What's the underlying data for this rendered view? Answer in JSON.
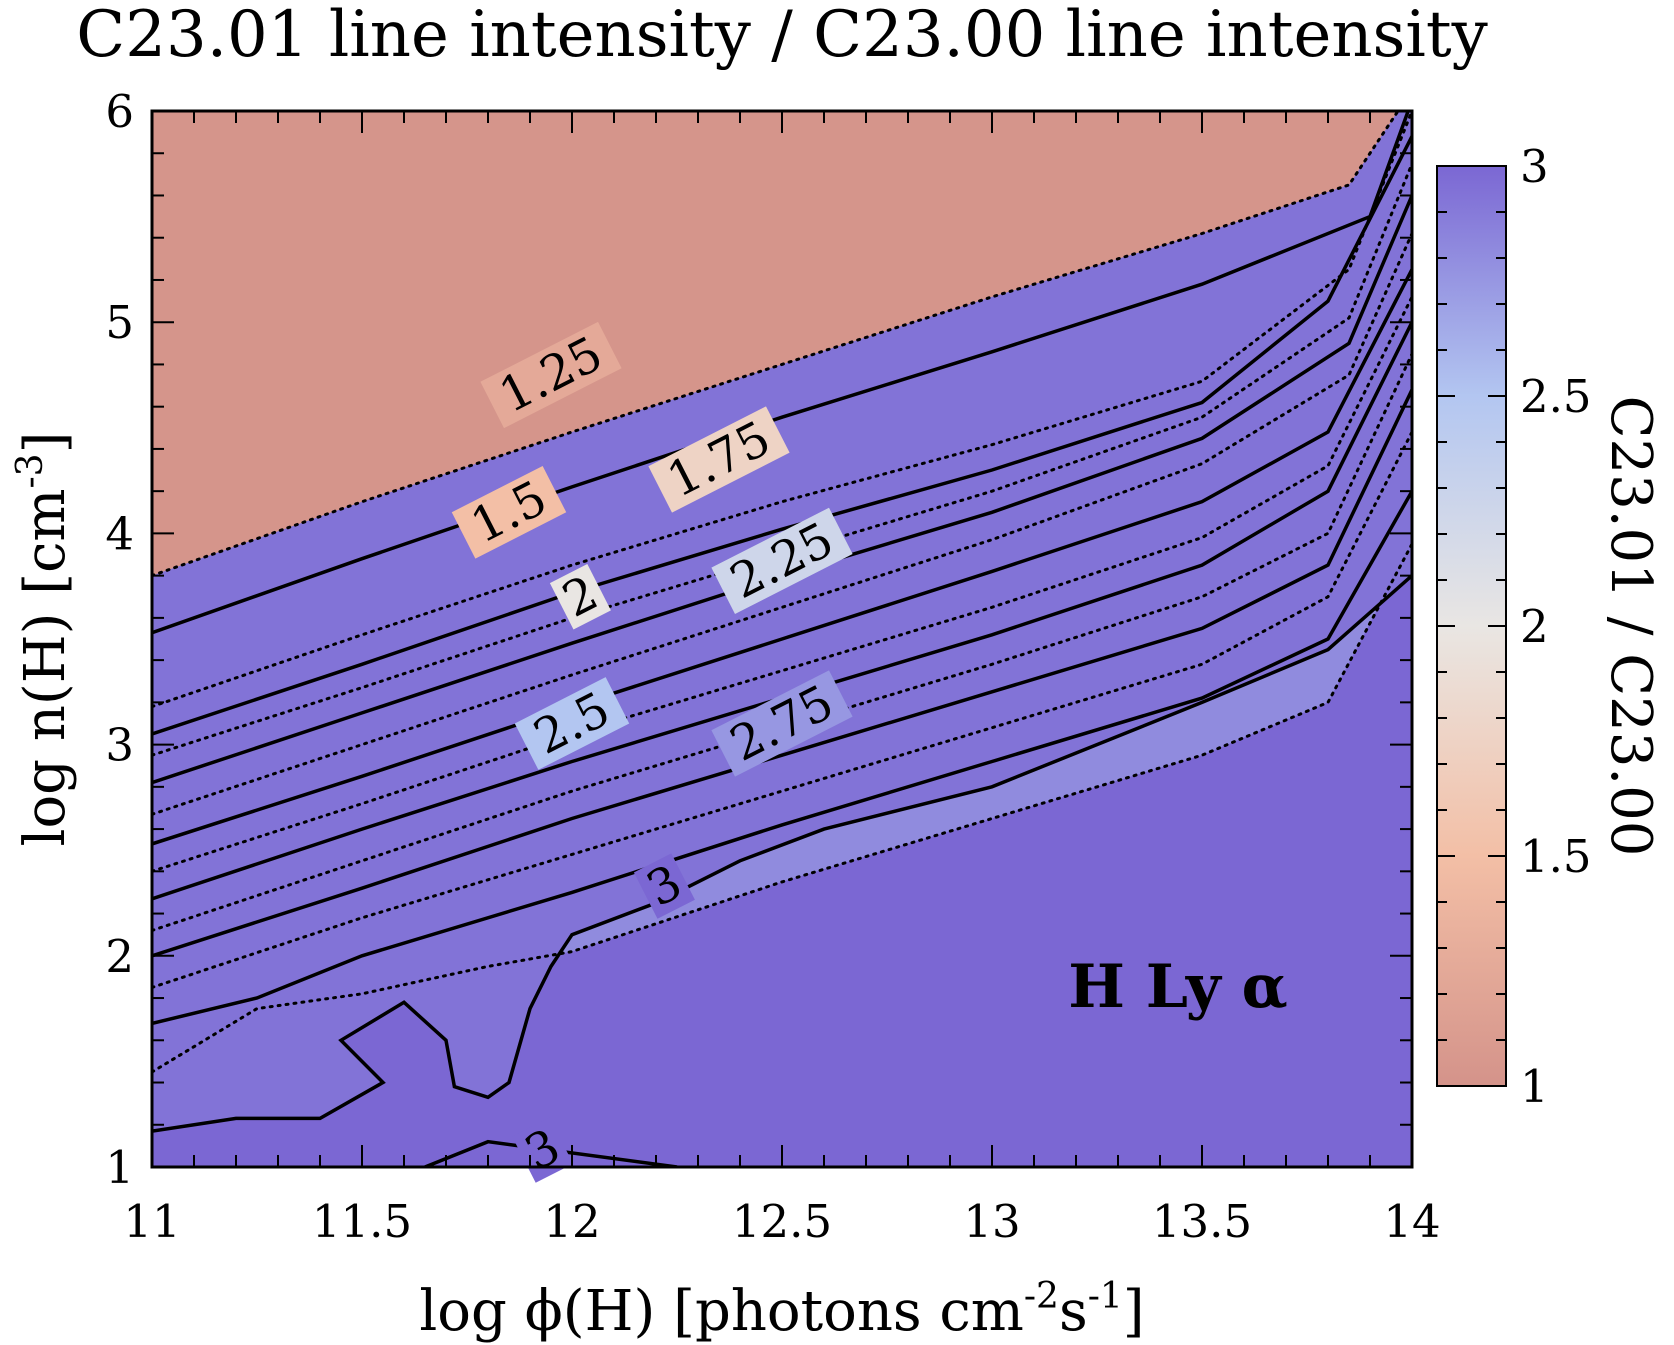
{
  "chart_data": {
    "type": "heatmap",
    "title": "C23.01 line intensity / C23.00 line intensity",
    "xlabel": "log ϕ(H) [photons cm⁻²s⁻¹]",
    "ylabel": "log n(H) [cm⁻³]",
    "xlabel_parts": {
      "main": "log ϕ(H) [photons cm",
      "sup1": "-2",
      "mid": "s",
      "sup2": "-1",
      "end": "]"
    },
    "ylabel_parts": {
      "main": "log n(H) [cm",
      "sup": "-3",
      "end": "]"
    },
    "xlim": [
      11,
      14
    ],
    "ylim": [
      1,
      6
    ],
    "xticks": [
      "11",
      "11.5",
      "12",
      "12.5",
      "13",
      "13.5",
      "14"
    ],
    "yticks": [
      "1",
      "2",
      "3",
      "4",
      "5",
      "6"
    ],
    "colorbar": {
      "label": "C23.01 / C23.00",
      "range": [
        1,
        3
      ],
      "ticks": [
        "1",
        "1.5",
        "2",
        "2.5",
        "3"
      ],
      "colors": [
        "#d4938a",
        "#f3bfa6",
        "#e9e6e3",
        "#b3c6f1",
        "#7b67d3"
      ]
    },
    "annotation": "H Ly α",
    "grid": false,
    "contours": [
      {
        "level": 1.125,
        "style": "dotted",
        "points": [
          [
            11,
            3.8
          ],
          [
            11.5,
            4.15
          ],
          [
            12,
            4.48
          ],
          [
            12.5,
            4.8
          ],
          [
            13,
            5.12
          ],
          [
            13.5,
            5.42
          ],
          [
            13.85,
            5.65
          ],
          [
            14,
            6.1
          ]
        ]
      },
      {
        "level": 1.25,
        "style": "solid",
        "label": "1.25",
        "label_pos": [
          11.95,
          4.75
        ],
        "points": [
          [
            11,
            3.53
          ],
          [
            11.5,
            3.88
          ],
          [
            12,
            4.22
          ],
          [
            12.5,
            4.55
          ],
          [
            13,
            4.86
          ],
          [
            13.5,
            5.18
          ],
          [
            13.9,
            5.5
          ],
          [
            14,
            6.05
          ]
        ]
      },
      {
        "level": 1.375,
        "style": "dotted",
        "points": [
          [
            11,
            3.18
          ],
          [
            11.5,
            3.52
          ],
          [
            12,
            3.85
          ],
          [
            12.5,
            4.15
          ],
          [
            13,
            4.42
          ],
          [
            13.5,
            4.72
          ],
          [
            13.85,
            5.25
          ],
          [
            14,
            6.0
          ]
        ]
      },
      {
        "level": 1.5,
        "style": "solid",
        "label": "1.5",
        "label_pos": [
          11.85,
          4.1
        ],
        "points": [
          [
            11,
            3.05
          ],
          [
            11.5,
            3.38
          ],
          [
            12,
            3.72
          ],
          [
            12.5,
            4.02
          ],
          [
            13,
            4.3
          ],
          [
            13.5,
            4.62
          ],
          [
            13.8,
            5.1
          ],
          [
            14,
            5.88
          ]
        ]
      },
      {
        "level": 1.625,
        "style": "dotted",
        "points": [
          [
            11,
            2.95
          ],
          [
            11.5,
            3.27
          ],
          [
            12,
            3.6
          ],
          [
            12.5,
            3.9
          ],
          [
            13,
            4.2
          ],
          [
            13.5,
            4.55
          ],
          [
            13.85,
            5.02
          ],
          [
            14,
            5.75
          ]
        ]
      },
      {
        "level": 1.75,
        "style": "solid",
        "label": "1.75",
        "label_pos": [
          12.35,
          4.35
        ],
        "points": [
          [
            11,
            2.82
          ],
          [
            11.5,
            3.15
          ],
          [
            12,
            3.48
          ],
          [
            12.5,
            3.8
          ],
          [
            13,
            4.1
          ],
          [
            13.5,
            4.45
          ],
          [
            13.85,
            4.9
          ],
          [
            14,
            5.6
          ]
        ]
      },
      {
        "level": 1.875,
        "style": "dotted",
        "points": [
          [
            11,
            2.67
          ],
          [
            11.5,
            3.0
          ],
          [
            12,
            3.33
          ],
          [
            12.5,
            3.65
          ],
          [
            13,
            3.97
          ],
          [
            13.5,
            4.33
          ],
          [
            13.85,
            4.75
          ],
          [
            14,
            5.42
          ]
        ]
      },
      {
        "level": 2.0,
        "style": "solid",
        "label": "2",
        "label_pos": [
          12.02,
          3.7
        ],
        "points": [
          [
            11,
            2.53
          ],
          [
            11.5,
            2.85
          ],
          [
            12,
            3.18
          ],
          [
            12.5,
            3.5
          ],
          [
            13,
            3.82
          ],
          [
            13.5,
            4.15
          ],
          [
            13.8,
            4.48
          ],
          [
            14,
            5.25
          ]
        ]
      },
      {
        "level": 2.125,
        "style": "dotted",
        "points": [
          [
            11,
            2.4
          ],
          [
            11.5,
            2.72
          ],
          [
            12,
            3.05
          ],
          [
            12.5,
            3.35
          ],
          [
            13,
            3.65
          ],
          [
            13.5,
            3.98
          ],
          [
            13.8,
            4.32
          ],
          [
            14,
            5.12
          ]
        ]
      },
      {
        "level": 2.25,
        "style": "solid",
        "label": "2.25",
        "label_pos": [
          12.5,
          3.87
        ],
        "points": [
          [
            11,
            2.27
          ],
          [
            11.5,
            2.6
          ],
          [
            12,
            2.92
          ],
          [
            12.5,
            3.22
          ],
          [
            13,
            3.52
          ],
          [
            13.5,
            3.85
          ],
          [
            13.8,
            4.2
          ],
          [
            14,
            5.0
          ]
        ]
      },
      {
        "level": 2.375,
        "style": "dotted",
        "points": [
          [
            11,
            2.12
          ],
          [
            11.5,
            2.45
          ],
          [
            12,
            2.78
          ],
          [
            12.5,
            3.08
          ],
          [
            13,
            3.38
          ],
          [
            13.5,
            3.7
          ],
          [
            13.8,
            4.0
          ],
          [
            14,
            4.85
          ]
        ]
      },
      {
        "level": 2.5,
        "style": "solid",
        "label": "2.5",
        "label_pos": [
          12.0,
          3.1
        ],
        "points": [
          [
            11,
            2.0
          ],
          [
            11.5,
            2.32
          ],
          [
            12,
            2.65
          ],
          [
            12.5,
            2.95
          ],
          [
            13,
            3.25
          ],
          [
            13.5,
            3.55
          ],
          [
            13.8,
            3.85
          ],
          [
            14,
            4.68
          ]
        ]
      },
      {
        "level": 2.625,
        "style": "dotted",
        "points": [
          [
            11,
            1.85
          ],
          [
            11.5,
            2.18
          ],
          [
            12,
            2.48
          ],
          [
            12.5,
            2.78
          ],
          [
            13,
            3.08
          ],
          [
            13.5,
            3.38
          ],
          [
            13.8,
            3.7
          ],
          [
            14,
            4.48
          ]
        ]
      },
      {
        "level": 2.75,
        "style": "solid",
        "label": "2.75",
        "label_pos": [
          12.5,
          3.1
        ],
        "points": [
          [
            11,
            1.68
          ],
          [
            11.25,
            1.8
          ],
          [
            11.5,
            2.0
          ],
          [
            12,
            2.3
          ],
          [
            12.5,
            2.62
          ],
          [
            13,
            2.92
          ],
          [
            13.5,
            3.22
          ],
          [
            13.8,
            3.5
          ],
          [
            14,
            4.2
          ]
        ]
      },
      {
        "level": 2.875,
        "style": "dotted",
        "points": [
          [
            11,
            1.45
          ],
          [
            11.25,
            1.75
          ],
          [
            11.5,
            1.82
          ],
          [
            11.8,
            1.95
          ],
          [
            12.0,
            2.02
          ],
          [
            12.5,
            2.35
          ],
          [
            13,
            2.65
          ],
          [
            13.5,
            2.95
          ],
          [
            13.8,
            3.2
          ],
          [
            14,
            3.95
          ]
        ]
      },
      {
        "level": 3.0,
        "style": "solid",
        "label": "3",
        "label_pos": [
          12.22,
          2.33
        ],
        "points": [
          [
            11,
            1.17
          ],
          [
            11.2,
            1.23
          ],
          [
            11.4,
            1.23
          ],
          [
            11.55,
            1.4
          ],
          [
            11.45,
            1.6
          ],
          [
            11.6,
            1.78
          ],
          [
            11.7,
            1.6
          ],
          [
            11.72,
            1.38
          ],
          [
            11.8,
            1.33
          ],
          [
            11.85,
            1.4
          ],
          [
            11.9,
            1.75
          ],
          [
            11.95,
            1.95
          ],
          [
            12.0,
            2.1
          ],
          [
            12.2,
            2.25
          ],
          [
            12.4,
            2.45
          ],
          [
            12.6,
            2.6
          ],
          [
            13,
            2.8
          ],
          [
            13.5,
            3.2
          ],
          [
            13.8,
            3.45
          ],
          [
            14,
            3.8
          ]
        ]
      },
      {
        "level": 3.0,
        "style": "solid",
        "label": "3",
        "label_pos": [
          11.93,
          1.08
        ],
        "points": [
          [
            11.65,
            1.0
          ],
          [
            11.8,
            1.12
          ],
          [
            12.25,
            1.0
          ]
        ]
      }
    ]
  }
}
